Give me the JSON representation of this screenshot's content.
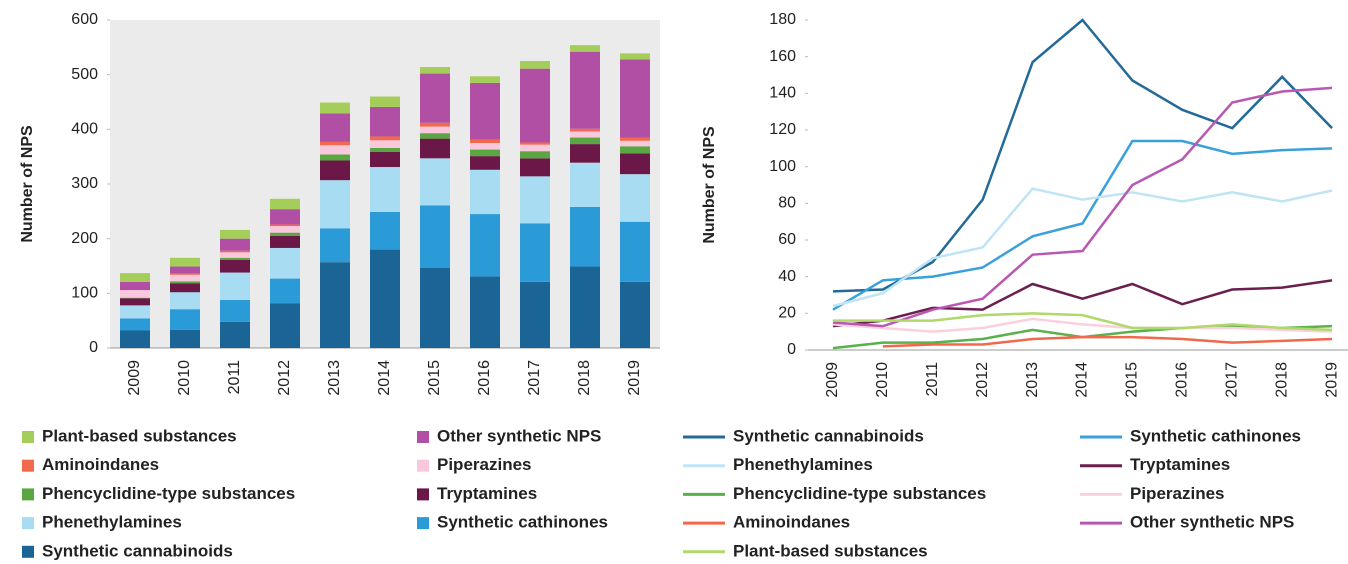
{
  "chart_data": [
    {
      "type": "bar",
      "stacked": true,
      "ylabel": "Number of NPS",
      "background": "#ebebeb",
      "categories": [
        "2009",
        "2010",
        "2011",
        "2012",
        "2013",
        "2014",
        "2015",
        "2016",
        "2017",
        "2018",
        "2019"
      ],
      "ylim": [
        0,
        600
      ],
      "yticks": [
        0,
        100,
        200,
        300,
        400,
        500,
        600
      ],
      "series": [
        {
          "name": "Synthetic cannabinoids",
          "color": "#1a6496",
          "values": [
            32,
            33,
            48,
            82,
            157,
            180,
            147,
            131,
            121,
            149,
            121
          ]
        },
        {
          "name": "Synthetic cathinones",
          "color": "#2b9bd8",
          "values": [
            22,
            38,
            40,
            45,
            62,
            69,
            114,
            114,
            107,
            109,
            110
          ]
        },
        {
          "name": "Phenethylamines",
          "color": "#a8dcf3",
          "values": [
            24,
            31,
            50,
            56,
            88,
            82,
            86,
            81,
            86,
            81,
            87
          ]
        },
        {
          "name": "Tryptamines",
          "color": "#6b1848",
          "values": [
            13,
            16,
            23,
            22,
            36,
            28,
            36,
            25,
            33,
            34,
            38
          ]
        },
        {
          "name": "Phencyclidine-type substances",
          "color": "#5aa640",
          "values": [
            1,
            4,
            4,
            6,
            11,
            7,
            10,
            12,
            13,
            12,
            13
          ]
        },
        {
          "name": "Piperazines",
          "color": "#f9c8dc",
          "values": [
            14,
            12,
            10,
            12,
            17,
            14,
            12,
            12,
            12,
            11,
            10
          ]
        },
        {
          "name": "Aminoindanes",
          "color": "#f26a4b",
          "values": [
            null,
            2,
            3,
            3,
            6,
            7,
            7,
            6,
            4,
            5,
            6
          ]
        },
        {
          "name": "Other synthetic NPS",
          "color": "#b14fa5",
          "values": [
            15,
            13,
            22,
            28,
            52,
            54,
            90,
            104,
            135,
            141,
            143
          ]
        },
        {
          "name": "Plant-based substances",
          "color": "#a5cd5a",
          "values": [
            16,
            16,
            16,
            19,
            20,
            19,
            12,
            12,
            14,
            12,
            11
          ]
        }
      ]
    },
    {
      "type": "line",
      "ylabel": "Number of NPS",
      "categories": [
        "2009",
        "2010",
        "2011",
        "2012",
        "2013",
        "2014",
        "2015",
        "2016",
        "2017",
        "2018",
        "2019"
      ],
      "ylim": [
        0,
        180
      ],
      "yticks": [
        0,
        20,
        40,
        60,
        80,
        100,
        120,
        140,
        160,
        180
      ],
      "series": [
        {
          "name": "Synthetic cannabinoids",
          "color": "#236a98",
          "values": [
            32,
            33,
            48,
            82,
            157,
            180,
            147,
            131,
            121,
            149,
            121
          ]
        },
        {
          "name": "Synthetic cathinones",
          "color": "#3aa0dc",
          "values": [
            22,
            38,
            40,
            45,
            62,
            69,
            114,
            114,
            107,
            109,
            110
          ]
        },
        {
          "name": "Phenethylamines",
          "color": "#bfe4f6",
          "values": [
            24,
            31,
            50,
            56,
            88,
            82,
            86,
            81,
            86,
            81,
            87
          ]
        },
        {
          "name": "Tryptamines",
          "color": "#6b1f4e",
          "values": [
            13,
            16,
            23,
            22,
            36,
            28,
            36,
            25,
            33,
            34,
            38
          ]
        },
        {
          "name": "Phencyclidine-type substances",
          "color": "#5ab04c",
          "values": [
            1,
            4,
            4,
            6,
            11,
            7,
            10,
            12,
            13,
            12,
            13
          ]
        },
        {
          "name": "Piperazines",
          "color": "#fad0dd",
          "values": [
            14,
            12,
            10,
            12,
            17,
            14,
            12,
            12,
            12,
            11,
            10
          ]
        },
        {
          "name": "Aminoindanes",
          "color": "#f2684a",
          "values": [
            null,
            2,
            3,
            3,
            6,
            7,
            7,
            6,
            4,
            5,
            6
          ]
        },
        {
          "name": "Other synthetic NPS",
          "color": "#b958b2",
          "values": [
            15,
            13,
            22,
            28,
            52,
            54,
            90,
            104,
            135,
            141,
            143
          ]
        },
        {
          "name": "Plant-based substances",
          "color": "#b0d86a",
          "values": [
            16,
            16,
            16,
            19,
            20,
            19,
            12,
            12,
            14,
            12,
            11
          ]
        }
      ]
    }
  ]
}
